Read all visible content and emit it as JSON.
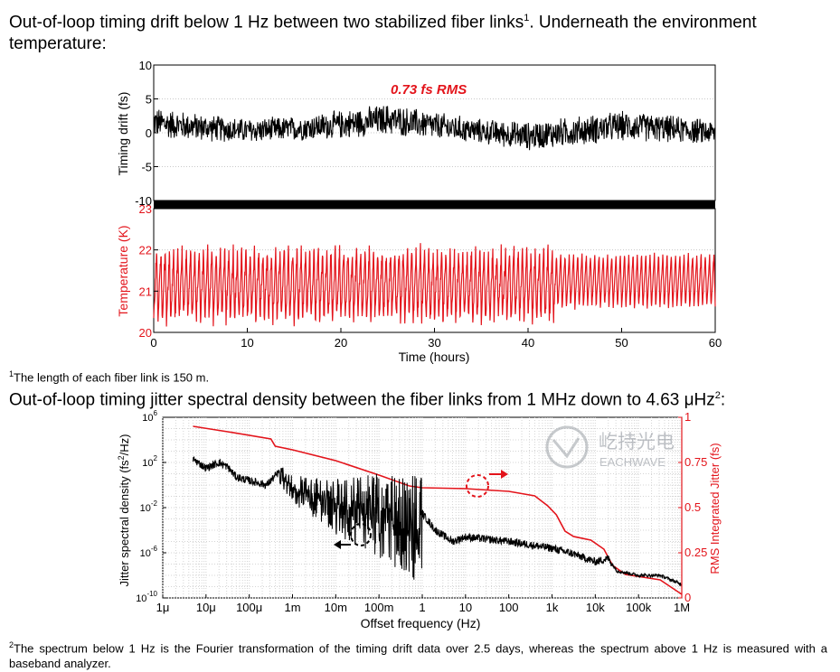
{
  "heading_1": {
    "pre": "Out-of-loop timing drift below 1 Hz between two stabilized fiber links",
    "sup": "1",
    "post": ". Underneath the environment temperature:"
  },
  "footnote_1": {
    "sup": "1",
    "text": "The length of each fiber link is 150 m."
  },
  "heading_2": {
    "pre": "Out-of-loop timing jitter spectral density between the fiber links from 1 MHz down to 4.63 μHz",
    "sup": "2",
    "post": ":"
  },
  "footnote_2": {
    "sup": "2",
    "text": "The spectrum below 1 Hz is the Fourier transformation of the timing drift data over 2.5 days, whereas the spectrum above 1 Hz is measured with a baseband analyzer."
  },
  "watermark": {
    "cn": "屹持光电",
    "en": "EACHWAVE"
  },
  "colors": {
    "black": "#000000",
    "red": "#e3141b",
    "grid": "#c8c8c8"
  },
  "chart_data": [
    {
      "type": "line",
      "panel": "top",
      "ylabel": "Timing drift (fs)",
      "xlim": [
        0,
        60
      ],
      "ylim": [
        -10,
        10
      ],
      "yticks": [
        "10",
        "5",
        "0",
        "-5",
        "-10"
      ],
      "annotation": "0.73 fs RMS",
      "series": [
        {
          "color": "#000000",
          "envelope_x": [
            0,
            5,
            10,
            15,
            20,
            25,
            30,
            35,
            40,
            45,
            50,
            55,
            60
          ],
          "center_y": [
            1.5,
            0.8,
            0.3,
            0.6,
            1.2,
            2.0,
            1.0,
            0.2,
            -0.5,
            0.2,
            1.0,
            0.6,
            0.0
          ],
          "amplitude": [
            2.5,
            2.2,
            2.0,
            2.0,
            2.3,
            2.5,
            2.3,
            2.0,
            2.3,
            2.4,
            2.4,
            2.2,
            2.0
          ]
        }
      ]
    },
    {
      "type": "line",
      "panel": "middle",
      "ylabel": "Temperature (K)",
      "xlabel": "Time (hours)",
      "xlim": [
        0,
        60
      ],
      "ylim": [
        20,
        23
      ],
      "xticks": [
        "0",
        "10",
        "20",
        "30",
        "40",
        "50",
        "60"
      ],
      "yticks": [
        "23",
        "22",
        "21",
        "20"
      ],
      "series": [
        {
          "color": "#e3141b",
          "cycles_per_hour": 2.2,
          "range_before_43h": [
            20.3,
            22.0
          ],
          "range_after_43h": [
            20.6,
            21.9
          ]
        }
      ]
    },
    {
      "type": "line",
      "panel": "bottom",
      "scale": "log-log",
      "xlabel": "Offset frequency (Hz)",
      "ylabel": "Jitter spectral density (fs²/Hz)",
      "y2label": "RMS Integrated Jitter (fs)",
      "xticks": [
        "1μ",
        "10μ",
        "100μ",
        "1m",
        "10m",
        "100m",
        "1",
        "10",
        "100",
        "1k",
        "10k",
        "100k",
        "1M"
      ],
      "yticks_exp": [
        "6",
        "2",
        "-2",
        "-6",
        "-10"
      ],
      "y2ticks": [
        "1",
        "0.75",
        "0.5",
        "0.25",
        "0"
      ],
      "series": [
        {
          "name": "",
          "color": "#000000",
          "points_log10": [
            [
              -5.3,
              2.3
            ],
            [
              -5.0,
              1.5
            ],
            [
              -4.7,
              2.0
            ],
            [
              -4.5,
              1.6
            ],
            [
              -4.3,
              0.7
            ],
            [
              -4.0,
              0.4
            ],
            [
              -3.6,
              0.0
            ],
            [
              -3.3,
              1.2
            ],
            [
              -3.0,
              0.0
            ],
            [
              -2.0,
              -1.2
            ],
            [
              -1.0,
              -1.6
            ],
            [
              0,
              -2.5
            ],
            [
              0.3,
              -4.0
            ],
            [
              0.7,
              -5.0
            ],
            [
              1.0,
              -4.6
            ],
            [
              1.5,
              -4.8
            ],
            [
              2.0,
              -5.0
            ],
            [
              2.5,
              -5.3
            ],
            [
              3.0,
              -5.6
            ],
            [
              3.5,
              -6.1
            ],
            [
              4.0,
              -6.8
            ],
            [
              4.3,
              -6.5
            ],
            [
              4.5,
              -7.6
            ],
            [
              5.0,
              -8.0
            ],
            [
              5.5,
              -8.0
            ],
            [
              6.0,
              -8.8
            ]
          ]
        },
        {
          "name": "",
          "color": "#e3141b",
          "points": [
            [
              -5.3,
              0.95
            ],
            [
              -4.5,
              0.92
            ],
            [
              -3.5,
              0.88
            ],
            [
              -3.4,
              0.84
            ],
            [
              -3.0,
              0.82
            ],
            [
              -2.0,
              0.76
            ],
            [
              -1.0,
              0.68
            ],
            [
              -0.3,
              0.62
            ],
            [
              0,
              0.61
            ],
            [
              1.0,
              0.605
            ],
            [
              2.0,
              0.59
            ],
            [
              2.6,
              0.565
            ],
            [
              2.9,
              0.51
            ],
            [
              3.1,
              0.46
            ],
            [
              3.3,
              0.37
            ],
            [
              3.5,
              0.34
            ],
            [
              3.9,
              0.32
            ],
            [
              4.2,
              0.27
            ],
            [
              4.4,
              0.18
            ],
            [
              4.7,
              0.13
            ],
            [
              5.5,
              0.1
            ],
            [
              6.0,
              0.02
            ]
          ]
        }
      ]
    }
  ]
}
